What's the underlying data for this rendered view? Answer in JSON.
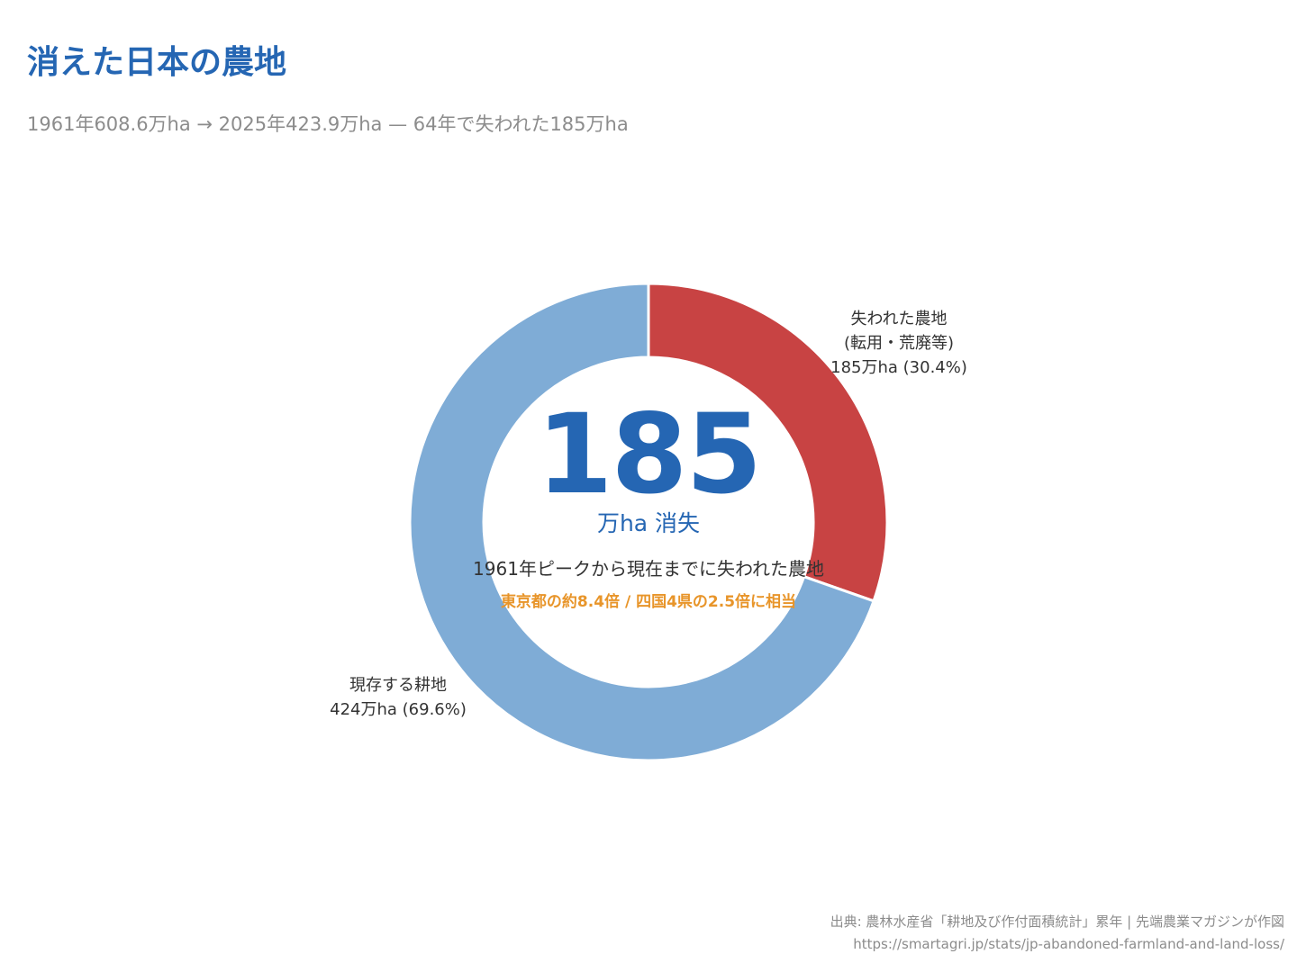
{
  "title": "消えた日本の農地",
  "subtitle": "1961年608.6万ha → 2025年423.9万ha — 64年で失われた185万ha",
  "colors": {
    "title": "#2566b3",
    "lost": "#c84343",
    "remaining": "#7facd6",
    "accent": "#e8952a"
  },
  "center": {
    "value": "185",
    "unit": "万ha 消失",
    "description": "1961年ピークから現在までに失われた農地",
    "comparison": "東京都の約8.4倍 / 四国4県の2.5倍に相当"
  },
  "chart_data": {
    "type": "pie",
    "style": "donut",
    "unit": "万ha",
    "slices": [
      {
        "name": "失われた農地",
        "label_lines": [
          "失われた農地",
          "(転用・荒廃等)",
          "185万ha (30.4%)"
        ],
        "value": 185,
        "percent": 30.4,
        "color": "#c84343"
      },
      {
        "name": "現存する耕地",
        "label_lines": [
          "現存する耕地",
          "424万ha (69.6%)"
        ],
        "value": 424,
        "percent": 69.6,
        "color": "#7facd6"
      }
    ]
  },
  "source": {
    "line1": "出典: 農林水産省「耕地及び作付面積統計」累年 | 先端農業マガジンが作図",
    "line2": "https://smartagri.jp/stats/jp-abandoned-farmland-and-land-loss/"
  }
}
